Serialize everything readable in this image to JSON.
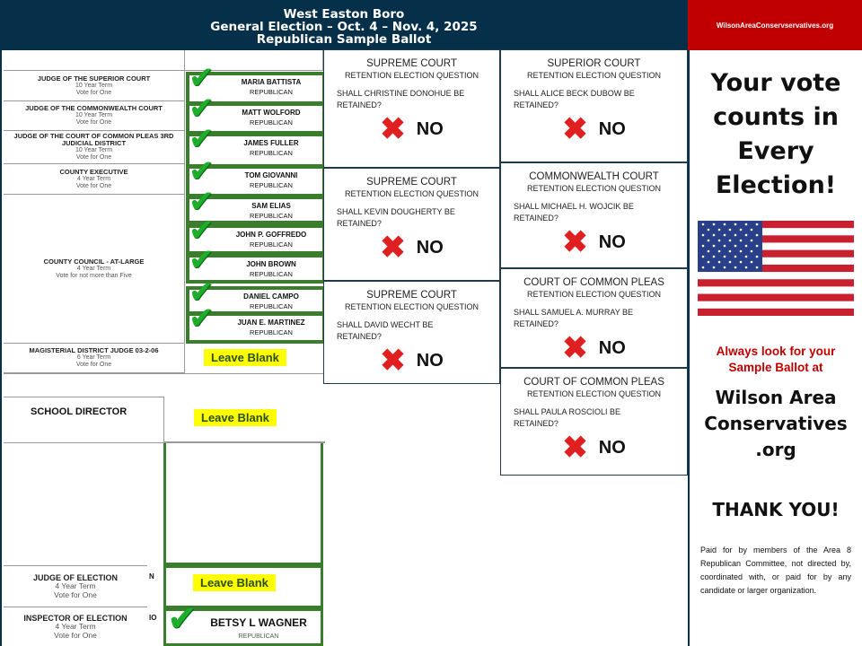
{
  "header": {
    "line1": "West Easton Boro",
    "line2": "General Election – Oct. 4 – Nov. 4, 2025",
    "line3": "Republican Sample Ballot",
    "site": "WilsonAreaConservservatives.org"
  },
  "offices": [
    {
      "title": "JUDGE OF THE SUPERIOR COURT",
      "term": "10 Year Term",
      "vote": "Vote for One"
    },
    {
      "title": "JUDGE OF THE COMMONWEALTH COURT",
      "term": "10 Year Term",
      "vote": "Vote for One"
    },
    {
      "title": "JUDGE OF THE COURT OF COMMON PLEAS 3RD JUDICIAL DISTRICT",
      "term": "10 Year Term",
      "vote": "Vote for One"
    },
    {
      "title": "COUNTY EXECUTIVE",
      "term": "4 Year Term",
      "vote": "Vote for One"
    },
    {
      "title": "COUNTY COUNCIL - AT-LARGE",
      "term": "4 Year Term",
      "vote": "Vote for not more than Five"
    },
    {
      "title": "MAGISTERIAL DISTRICT JUDGE 03-2-06",
      "term": "6 Year Term",
      "vote": "Vote for One"
    }
  ],
  "candidates": [
    {
      "name": "MARIA BATTISTA",
      "party": "REPUBLICAN"
    },
    {
      "name": "MATT WOLFORD",
      "party": "REPUBLICAN"
    },
    {
      "name": "JAMES FULLER",
      "party": "REPUBLICAN"
    },
    {
      "name": "TOM GIOVANNI",
      "party": "REPUBLICAN"
    },
    {
      "name": "SAM ELIAS",
      "party": "REPUBLICAN"
    },
    {
      "name": "JOHN P. GOFFREDO",
      "party": "REPUBLICAN"
    },
    {
      "name": "JOHN BROWN",
      "party": "REPUBLICAN"
    },
    {
      "name": "DANIEL CAMPO",
      "party": "REPUBLICAN"
    },
    {
      "name": "JUAN E. MARTINEZ",
      "party": "REPUBLICAN"
    }
  ],
  "leave_blank": "Leave Blank",
  "school": {
    "title": "SCHOOL DIRECTOR"
  },
  "judge_election": {
    "title": "JUDGE OF ELECTION",
    "term": "4 Year Term",
    "vote": "Vote for One",
    "frag": "N"
  },
  "inspector": {
    "title": "INSPECTOR OF ELECTION",
    "term": "4 Year Term",
    "vote": "Vote for One",
    "frag": "IO",
    "name": "BETSY L WAGNER",
    "party": "REPUBLICAN"
  },
  "retention": [
    {
      "court": "SUPREME COURT",
      "sub": "RETENTION ELECTION QUESTION",
      "q": "SHALL CHRISTINE DONOHUE BE RETAINED?",
      "a": "NO"
    },
    {
      "court": "SUPREME COURT",
      "sub": "RETENTION ELECTION QUESTION",
      "q": "SHALL KEVIN DOUGHERTY BE RETAINED?",
      "a": "NO"
    },
    {
      "court": "SUPREME COURT",
      "sub": "RETENTION ELECTION QUESTION",
      "q": "SHALL DAVID WECHT BE RETAINED?",
      "a": "NO"
    },
    {
      "court": "SUPERIOR COURT",
      "sub": "RETENTION ELECTION QUESTION",
      "q": "SHALL ALICE BECK DUBOW BE RETAINED?",
      "a": "NO"
    },
    {
      "court": "COMMONWEALTH COURT",
      "sub": "RETENTION ELECTION QUESTION",
      "q": "SHALL  MICHAEL H. WOJCIK BE RETAINED?",
      "a": "NO"
    },
    {
      "court": "COURT OF COMMON PLEAS",
      "sub": "RETENTION ELECTION QUESTION",
      "q": "SHALL  SAMUEL A. MURRAY BE RETAINED?",
      "a": "NO"
    },
    {
      "court": "COURT OF COMMON PLEAS",
      "sub": "RETENTION ELECTION QUESTION",
      "q": "SHALL  PAULA ROSCIOLI BE RETAINED?",
      "a": "NO"
    }
  ],
  "right": {
    "headline": "Your vote counts in Every Election!",
    "look": "Always look for your Sample Ballot at",
    "site": "Wilson Area Conservatives .org",
    "thanks": "THANK YOU!",
    "disclaimer": "Paid for by members of the Area 8 Republican Committee, not directed by, coordinated with, or paid for by any candidate or larger organization."
  },
  "colors": {
    "navy": "#06304a",
    "red": "#c00000",
    "check": "#1fae2c",
    "x": "#e02020",
    "highlight": "#ffff00"
  },
  "icons": {
    "check": "check-mark-icon",
    "x": "x-mark-icon",
    "flag": "us-flag-icon"
  }
}
